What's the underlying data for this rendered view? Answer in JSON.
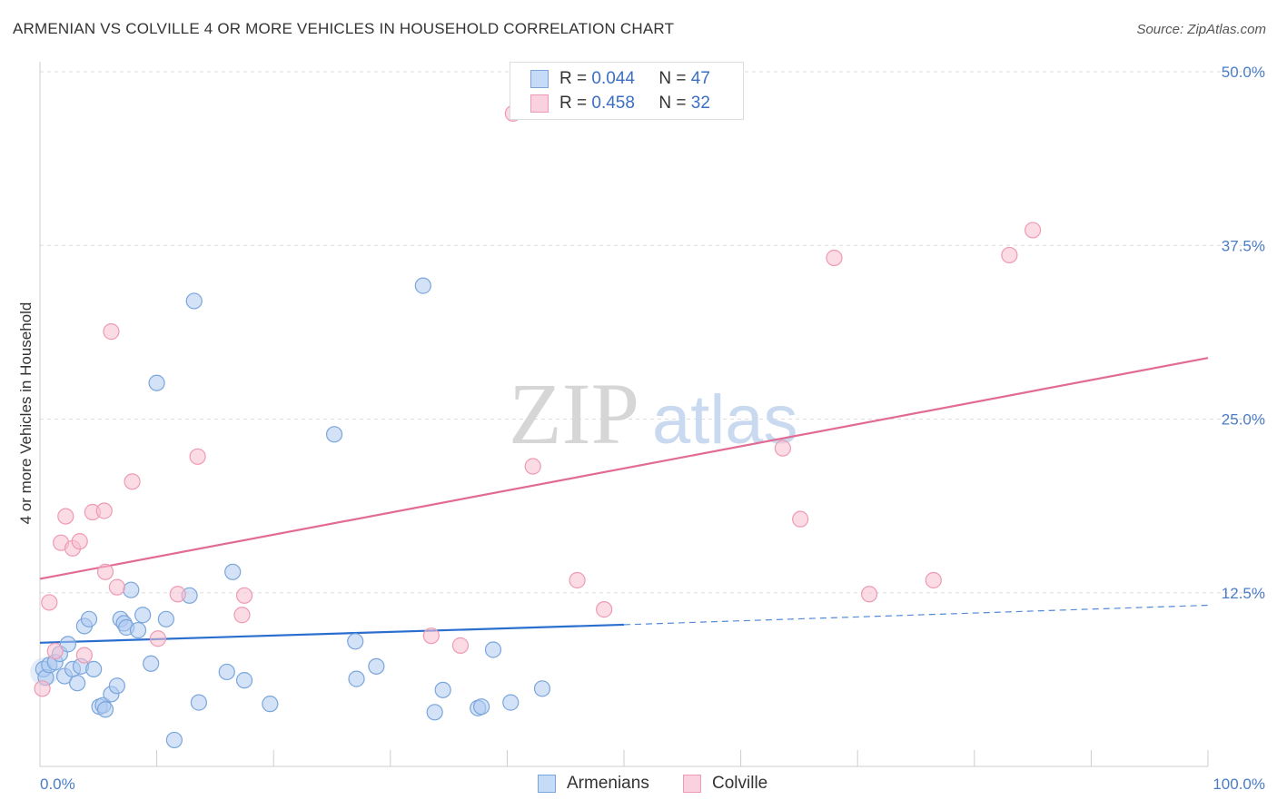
{
  "title": "ARMENIAN VS COLVILLE 4 OR MORE VEHICLES IN HOUSEHOLD CORRELATION CHART",
  "source": "Source: ZipAtlas.com",
  "watermark": {
    "zip": "ZIP",
    "atlas": "atlas"
  },
  "legend": {
    "armenians": {
      "r_label": "R =",
      "r_value": "0.044",
      "n_label": "N =",
      "n_value": "47"
    },
    "colville": {
      "r_label": "R =",
      "r_value": "0.458",
      "n_label": "N =",
      "n_value": "32"
    }
  },
  "bottom_legend": {
    "armenians": "Armenians",
    "colville": "Colville"
  },
  "colors": {
    "armenians_fill": "#aecbf0",
    "armenians_stroke": "#7aa6dc",
    "armenians_line": "#2a6ecf",
    "colville_fill": "#f7bfd0",
    "colville_stroke": "#ee9ab4",
    "colville_line": "#e26b94",
    "grid": "#dddddd",
    "tick_text": "#4a7cc7"
  },
  "chart_data": {
    "type": "scatter",
    "title": "ARMENIAN VS COLVILLE 4 OR MORE VEHICLES IN HOUSEHOLD CORRELATION CHART",
    "xlabel": "",
    "ylabel": "4 or more Vehicles in Household",
    "xlim": [
      0,
      100
    ],
    "ylim": [
      0,
      50
    ],
    "x_tick_labels": [
      "0.0%",
      "100.0%"
    ],
    "y_ticks": [
      12.5,
      25.0,
      37.5,
      50.0
    ],
    "y_tick_labels": [
      "12.5%",
      "25.0%",
      "37.5%",
      "50.0%"
    ],
    "grid": true,
    "legend_position": "top-center",
    "series": [
      {
        "name": "Armenians",
        "points": [
          [
            0.3,
            7.0
          ],
          [
            0.5,
            6.4
          ],
          [
            0.8,
            7.3
          ],
          [
            1.3,
            7.5
          ],
          [
            1.7,
            8.1
          ],
          [
            2.1,
            6.5
          ],
          [
            2.4,
            8.8
          ],
          [
            2.8,
            7.0
          ],
          [
            3.2,
            6.0
          ],
          [
            3.5,
            7.2
          ],
          [
            3.8,
            10.1
          ],
          [
            4.2,
            10.6
          ],
          [
            4.6,
            7.0
          ],
          [
            5.1,
            4.3
          ],
          [
            5.4,
            4.4
          ],
          [
            5.6,
            4.1
          ],
          [
            6.1,
            5.2
          ],
          [
            6.6,
            5.8
          ],
          [
            6.9,
            10.6
          ],
          [
            7.2,
            10.3
          ],
          [
            7.4,
            10.0
          ],
          [
            7.8,
            12.7
          ],
          [
            8.4,
            9.8
          ],
          [
            8.8,
            10.9
          ],
          [
            9.5,
            7.4
          ],
          [
            10.0,
            27.6
          ],
          [
            10.8,
            10.6
          ],
          [
            11.5,
            1.9
          ],
          [
            12.8,
            12.3
          ],
          [
            13.2,
            33.5
          ],
          [
            13.6,
            4.6
          ],
          [
            16.0,
            6.8
          ],
          [
            16.5,
            14.0
          ],
          [
            17.5,
            6.2
          ],
          [
            19.7,
            4.5
          ],
          [
            25.2,
            23.9
          ],
          [
            27.0,
            9.0
          ],
          [
            27.1,
            6.3
          ],
          [
            28.8,
            7.2
          ],
          [
            32.8,
            34.6
          ],
          [
            33.8,
            3.9
          ],
          [
            34.5,
            5.5
          ],
          [
            37.5,
            4.2
          ],
          [
            37.8,
            4.3
          ],
          [
            38.8,
            8.4
          ],
          [
            40.3,
            4.6
          ],
          [
            43.0,
            5.6
          ]
        ]
      },
      {
        "name": "Colville",
        "points": [
          [
            0.2,
            5.6
          ],
          [
            0.8,
            11.8
          ],
          [
            1.3,
            8.3
          ],
          [
            1.8,
            16.1
          ],
          [
            2.2,
            18.0
          ],
          [
            2.8,
            15.7
          ],
          [
            3.4,
            16.2
          ],
          [
            3.8,
            8.0
          ],
          [
            4.5,
            18.3
          ],
          [
            5.5,
            18.4
          ],
          [
            5.6,
            14.0
          ],
          [
            6.1,
            31.3
          ],
          [
            6.6,
            12.9
          ],
          [
            7.9,
            20.5
          ],
          [
            10.1,
            9.2
          ],
          [
            11.8,
            12.4
          ],
          [
            13.5,
            22.3
          ],
          [
            17.3,
            10.9
          ],
          [
            17.5,
            12.3
          ],
          [
            33.5,
            9.4
          ],
          [
            36.0,
            8.7
          ],
          [
            40.5,
            47.0
          ],
          [
            42.2,
            21.6
          ],
          [
            46.0,
            13.4
          ],
          [
            48.3,
            11.3
          ],
          [
            63.6,
            22.9
          ],
          [
            65.1,
            17.8
          ],
          [
            68.0,
            36.6
          ],
          [
            71.0,
            12.4
          ],
          [
            76.5,
            13.4
          ],
          [
            83.0,
            36.8
          ],
          [
            85.0,
            38.6
          ]
        ]
      }
    ],
    "trend_lines": [
      {
        "series": "Armenians",
        "solid": [
          [
            0,
            8.9
          ],
          [
            50,
            10.2
          ]
        ],
        "dashed": [
          [
            50,
            10.2
          ],
          [
            100,
            11.6
          ]
        ]
      },
      {
        "series": "Colville",
        "solid": [
          [
            0,
            13.5
          ],
          [
            100,
            29.4
          ]
        ]
      }
    ]
  }
}
